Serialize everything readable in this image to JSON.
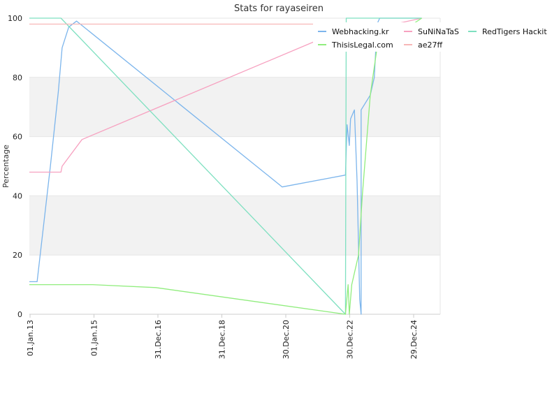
{
  "chart_data": {
    "type": "line",
    "title": "Stats for rayaseiren",
    "xlabel": "",
    "ylabel": "Percentage",
    "x_ticks": [
      "01.Jan.13",
      "01.Jan.15",
      "31.Dec.16",
      "31.Dec.18",
      "30.Dec.20",
      "30.Dec.22",
      "29.Dec.24"
    ],
    "ylim": [
      0,
      100
    ],
    "y_ticks": [
      0,
      20,
      40,
      60,
      80,
      100
    ],
    "xlim": [
      "2013-01-01",
      "2025-12-31"
    ],
    "grid": "horizontal",
    "bands": "alternating",
    "legend_position": "top-right",
    "colors": {
      "Webhacking.kr": "#7cb5ec",
      "SuNiNaTaS": "#f7a1c0",
      "RedTigers Hackit": "#7ee0c0",
      "ThisisLegal.com": "#90ed7d",
      "ae27ff": "#f7b7b7",
      "band": "#f2f2f2",
      "grid": "#e6e6e6",
      "axis": "#cccccc"
    },
    "series": [
      {
        "name": "Webhacking.kr",
        "points": [
          [
            "2013-01-01",
            11
          ],
          [
            "2013-04-01",
            11
          ],
          [
            "2013-09-01",
            50
          ],
          [
            "2013-12-01",
            75
          ],
          [
            "2014-01-15",
            90
          ],
          [
            "2014-04-01",
            97
          ],
          [
            "2014-07-01",
            99
          ],
          [
            "2021-01-01",
            43
          ],
          [
            "2023-01-01",
            47
          ],
          [
            "2023-01-20",
            64
          ],
          [
            "2023-02-15",
            57
          ],
          [
            "2023-03-01",
            66
          ],
          [
            "2023-04-15",
            69
          ],
          [
            "2023-05-15",
            45
          ],
          [
            "2023-06-15",
            5
          ],
          [
            "2023-07-01",
            0
          ],
          [
            "2023-07-01",
            69
          ],
          [
            "2023-10-15",
            74
          ],
          [
            "2023-12-01",
            80
          ],
          [
            "2024-01-01",
            98
          ],
          [
            "2024-02-01",
            100
          ],
          [
            "2025-06-01",
            100
          ]
        ]
      },
      {
        "name": "SuNiNaTaS",
        "points": [
          [
            "2013-01-01",
            48
          ],
          [
            "2014-01-01",
            48
          ],
          [
            "2014-01-15",
            50
          ],
          [
            "2014-09-01",
            59
          ],
          [
            "2022-01-01",
            92
          ],
          [
            "2025-06-01",
            100
          ]
        ]
      },
      {
        "name": "RedTigers Hackit",
        "points": [
          [
            "2013-01-01",
            100
          ],
          [
            "2014-01-01",
            100
          ],
          [
            "2023-01-01",
            0
          ],
          [
            "2023-01-10",
            100
          ],
          [
            "2025-06-01",
            100
          ]
        ]
      },
      {
        "name": "ThisisLegal.com",
        "points": [
          [
            "2013-01-01",
            10
          ],
          [
            "2015-01-01",
            10
          ],
          [
            "2017-01-01",
            9
          ],
          [
            "2023-01-01",
            0
          ],
          [
            "2023-02-01",
            10
          ],
          [
            "2023-02-15",
            0
          ],
          [
            "2023-03-15",
            10
          ],
          [
            "2023-06-01",
            20
          ],
          [
            "2023-07-15",
            40
          ],
          [
            "2023-10-15",
            74
          ],
          [
            "2024-01-01",
            90
          ],
          [
            "2025-06-01",
            100
          ]
        ]
      },
      {
        "name": "ae27ff",
        "points": [
          [
            "2013-01-01",
            98
          ],
          [
            "2025-06-01",
            98
          ]
        ]
      }
    ]
  }
}
